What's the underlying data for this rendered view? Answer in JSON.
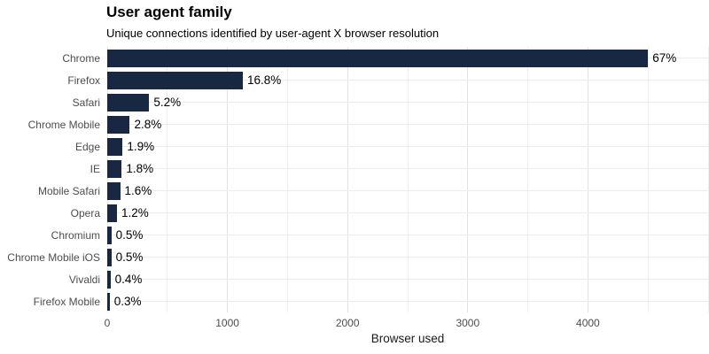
{
  "chart_data": {
    "type": "bar",
    "orientation": "horizontal",
    "title": "User agent family",
    "subtitle": "Unique connections identified by user-agent X browser resolution",
    "xlabel": "Browser used",
    "ylabel": "",
    "categories": [
      "Chrome",
      "Firefox",
      "Safari",
      "Chrome Mobile",
      "Edge",
      "IE",
      "Mobile Safari",
      "Opera",
      "Chromium",
      "Chrome Mobile iOS",
      "Vivaldi",
      "Firefox Mobile"
    ],
    "values": [
      4500,
      1128,
      349,
      188,
      128,
      121,
      107,
      81,
      34,
      34,
      27,
      20
    ],
    "value_labels": [
      "67%",
      "16.8%",
      "5.2%",
      "2.8%",
      "1.9%",
      "1.8%",
      "1.6%",
      "1.2%",
      "0.5%",
      "0.5%",
      "0.4%",
      "0.3%"
    ],
    "xlim": [
      0,
      5000
    ],
    "xticks": [
      0,
      1000,
      2000,
      3000,
      4000
    ],
    "xtick_labels": [
      "0",
      "1000",
      "2000",
      "3000",
      "4000"
    ],
    "minor_xticks": [
      500,
      1500,
      2500,
      3500,
      4500,
      5000
    ],
    "grid": "on",
    "legend": "none",
    "colors": {
      "bar": "#182843",
      "grid_major": "#e2e2e2",
      "grid_minor": "#efefef",
      "grid_row": "#ececec",
      "axis_text": "#4d4d4d",
      "value_label_text": "#000000",
      "background": "#ffffff"
    }
  }
}
